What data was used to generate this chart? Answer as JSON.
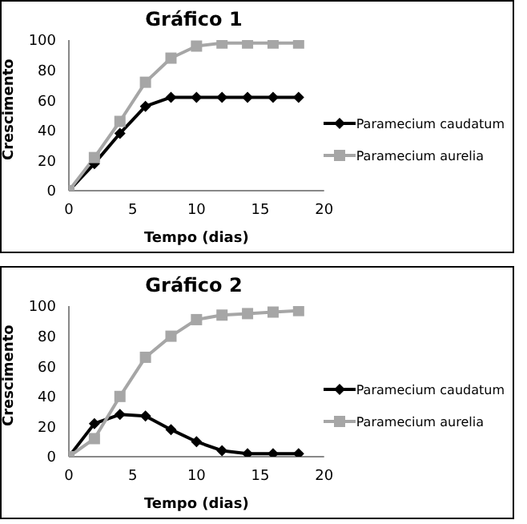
{
  "chart_data": [
    {
      "type": "line",
      "title": "Gráfico 1",
      "xlabel": "Tempo (dias)",
      "ylabel": "Crescimento",
      "x": [
        0,
        2,
        4,
        6,
        8,
        10,
        12,
        14,
        16,
        18
      ],
      "xlim": [
        0,
        20
      ],
      "xticks": [
        0,
        5,
        10,
        15,
        20
      ],
      "ylim": [
        0,
        100
      ],
      "yticks": [
        0,
        20,
        40,
        60,
        80,
        100
      ],
      "grid": false,
      "legend": "right",
      "series": [
        {
          "name": "Paramecium caudatum",
          "color": "#000000",
          "marker": "diamond",
          "values": [
            0,
            18,
            38,
            56,
            62,
            62,
            62,
            62,
            62,
            62
          ]
        },
        {
          "name": "Paramecium aurelia",
          "color": "#a6a6a6",
          "marker": "square",
          "values": [
            0,
            22,
            46,
            72,
            88,
            96,
            98,
            98,
            98,
            98
          ]
        }
      ]
    },
    {
      "type": "line",
      "title": "Gráfico 2",
      "xlabel": "Tempo (dias)",
      "ylabel": "Crescimento",
      "x": [
        0,
        2,
        4,
        6,
        8,
        10,
        12,
        14,
        16,
        18
      ],
      "xlim": [
        0,
        20
      ],
      "xticks": [
        0,
        5,
        10,
        15,
        20
      ],
      "ylim": [
        0,
        100
      ],
      "yticks": [
        0,
        20,
        40,
        60,
        80,
        100
      ],
      "grid": false,
      "legend": "right",
      "series": [
        {
          "name": "Paramecium caudatum",
          "color": "#000000",
          "marker": "diamond",
          "values": [
            0,
            22,
            28,
            27,
            18,
            10,
            4,
            2,
            2,
            2
          ]
        },
        {
          "name": "Paramecium aurelia",
          "color": "#a6a6a6",
          "marker": "square",
          "values": [
            0,
            12,
            40,
            66,
            80,
            91,
            94,
            95,
            96,
            97
          ]
        }
      ]
    }
  ]
}
